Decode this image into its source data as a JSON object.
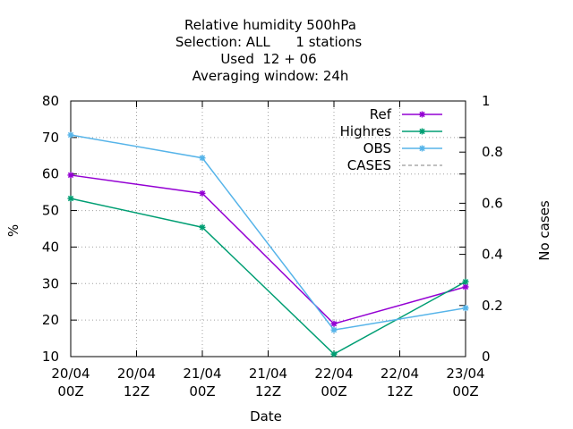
{
  "chart_data": {
    "type": "line",
    "title_lines": [
      "Relative humidity 500hPa",
      "Selection: ALL      1 stations",
      "Used  12 + 06",
      "Averaging window: 24h"
    ],
    "xlabel": "Date",
    "ylabel": "%",
    "y2label": "No cases",
    "x_ticks": [
      {
        "line1": "20/04",
        "line2": "00Z"
      },
      {
        "line1": "20/04",
        "line2": "12Z"
      },
      {
        "line1": "21/04",
        "line2": "00Z"
      },
      {
        "line1": "21/04",
        "line2": "12Z"
      },
      {
        "line1": "22/04",
        "line2": "00Z"
      },
      {
        "line1": "22/04",
        "line2": "12Z"
      },
      {
        "line1": "23/04",
        "line2": "00Z"
      }
    ],
    "x_range_hours": [
      0,
      72
    ],
    "ylim": [
      10,
      80
    ],
    "y_ticks": [
      "10",
      "20",
      "30",
      "40",
      "50",
      "60",
      "70",
      "80"
    ],
    "y2lim": [
      0,
      1
    ],
    "y2_ticks": [
      "0",
      "0.2",
      "0.4",
      "0.6",
      "0.8",
      "1"
    ],
    "grid": true,
    "legend_position": "top-right",
    "series": [
      {
        "name": "Ref",
        "color": "#9400d3",
        "marker": "star",
        "dash": "solid",
        "x": [
          0,
          24,
          48,
          72
        ],
        "y": [
          59.7,
          54.7,
          19.0,
          29.1
        ]
      },
      {
        "name": "Highres",
        "color": "#009e73",
        "marker": "star",
        "dash": "solid",
        "x": [
          0,
          24,
          48,
          72
        ],
        "y": [
          53.3,
          45.4,
          10.7,
          30.5
        ]
      },
      {
        "name": "OBS",
        "color": "#56b4e9",
        "marker": "star",
        "dash": "solid",
        "x": [
          0,
          24,
          48,
          72
        ],
        "y": [
          70.7,
          64.4,
          17.3,
          23.3
        ]
      },
      {
        "name": "CASES",
        "color": "#808080",
        "marker": "none",
        "dash": "dashed",
        "x": [],
        "y": []
      }
    ]
  }
}
